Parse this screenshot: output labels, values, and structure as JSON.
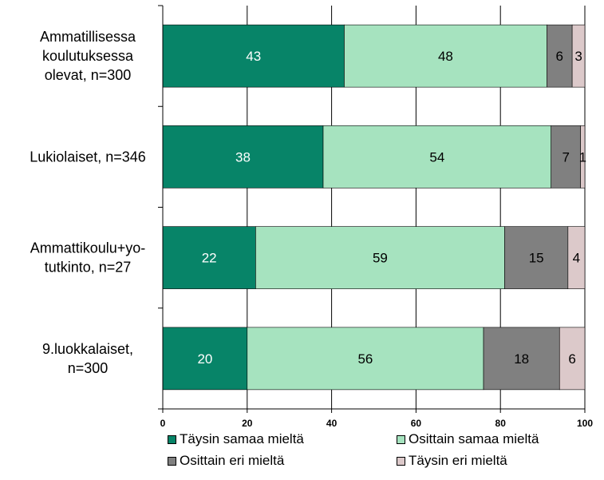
{
  "chart_data": {
    "type": "bar",
    "orientation": "horizontal",
    "stacked": true,
    "categories": [
      [
        "Ammatillisessa",
        "koulutuksessa",
        "olevat, n=300"
      ],
      [
        "Lukiolaiset, n=346"
      ],
      [
        "Ammattikoulu+yo-",
        "tutkinto, n=27"
      ],
      [
        "9.luokkalaiset,",
        "n=300"
      ]
    ],
    "series": [
      {
        "name": "Täysin samaa mieltä",
        "color": "#078468",
        "label_color": "#ffffff",
        "values": [
          43,
          38,
          22,
          20
        ]
      },
      {
        "name": "Osittain samaa mieltä",
        "color": "#a6e3bf",
        "label_color": "#000000",
        "values": [
          48,
          54,
          59,
          56
        ]
      },
      {
        "name": "Osittain eri mieltä",
        "color": "#808080",
        "label_color": "#000000",
        "values": [
          6,
          7,
          15,
          18
        ]
      },
      {
        "name": "Täysin eri mieltä",
        "color": "#dcc9ca",
        "label_color": "#000000",
        "values": [
          3,
          1,
          4,
          6
        ]
      }
    ],
    "xlim": [
      0,
      100
    ],
    "xticks": [
      "0",
      "20",
      "40",
      "60",
      "80",
      "100"
    ],
    "grid": true,
    "legend_position": "bottom"
  }
}
